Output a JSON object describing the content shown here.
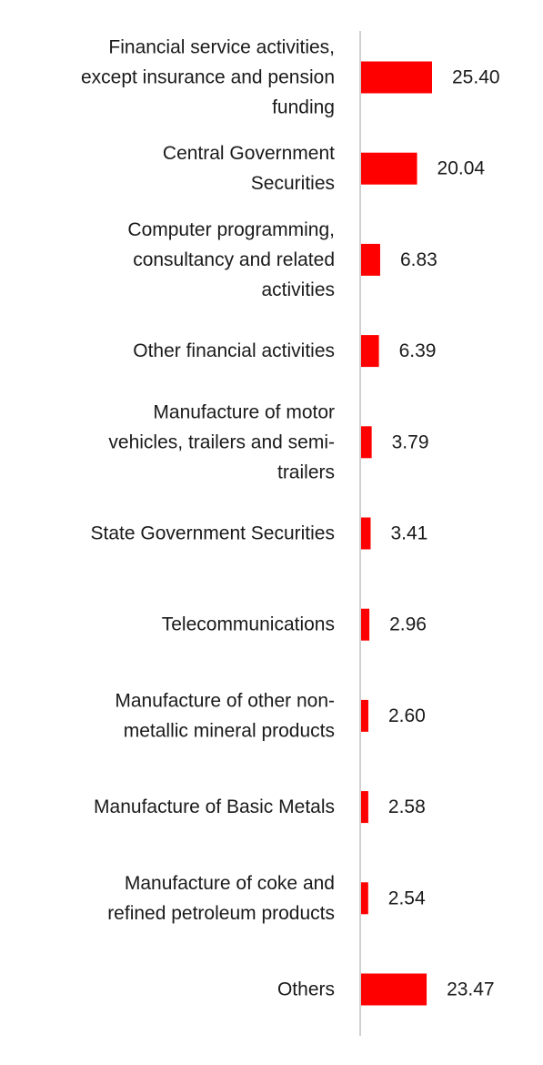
{
  "colors": {
    "bar": "#ff0000",
    "axis": "#d0d0d0",
    "text": "#1a1a1a"
  },
  "chart_data": {
    "type": "bar",
    "orientation": "horizontal",
    "title": "",
    "xlabel": "",
    "ylabel": "",
    "grid": false,
    "legend": "none",
    "categories": [
      "Financial service activities, except insurance and pension funding",
      "Central Government Securities",
      "Computer programming, consultancy and related activities",
      "Other financial activities",
      "Manufacture of motor vehicles, trailers and semi-trailers",
      "State Government Securities",
      "Telecommunications",
      "Manufacture of other non-metallic mineral products",
      "Manufacture of Basic Metals",
      "Manufacture of coke and refined petroleum products",
      "Others"
    ],
    "category_label_lines": [
      [
        "Financial service activities,",
        "except insurance and pension",
        "funding"
      ],
      [
        "Central Government",
        "Securities"
      ],
      [
        "Computer programming,",
        "consultancy and related",
        "activities"
      ],
      [
        "Other financial activities"
      ],
      [
        "Manufacture of motor",
        "vehicles, trailers and semi-",
        "trailers"
      ],
      [
        "State Government Securities"
      ],
      [
        "Telecommunications"
      ],
      [
        "Manufacture of other non-",
        "metallic mineral products"
      ],
      [
        "Manufacture of Basic Metals"
      ],
      [
        "Manufacture of coke and",
        "refined petroleum products"
      ],
      [
        "Others"
      ]
    ],
    "values": [
      25.4,
      20.04,
      6.83,
      6.39,
      3.79,
      3.41,
      2.96,
      2.6,
      2.58,
      2.54,
      23.47
    ],
    "value_labels": [
      "25.40",
      "20.04",
      "6.83",
      "6.39",
      "3.79",
      "3.41",
      "2.96",
      "2.60",
      "2.58",
      "2.54",
      "23.47"
    ],
    "xlim": [
      0,
      25.4
    ]
  }
}
